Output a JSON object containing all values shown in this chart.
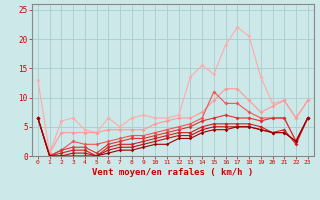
{
  "xlabel": "Vent moyen/en rafales ( km/h )",
  "bg_color": "#cce8e8",
  "grid_color": "#aacccc",
  "axis_color": "#cc0000",
  "spine_color": "#888888",
  "xlim": [
    -0.5,
    23.5
  ],
  "ylim": [
    0,
    26
  ],
  "yticks": [
    0,
    5,
    10,
    15,
    20,
    25
  ],
  "xticks": [
    0,
    1,
    2,
    3,
    4,
    5,
    6,
    7,
    8,
    9,
    10,
    11,
    12,
    13,
    14,
    15,
    16,
    17,
    18,
    19,
    20,
    21,
    22,
    23
  ],
  "series": [
    {
      "x": [
        0,
        1,
        2,
        3,
        4,
        5,
        6,
        7,
        8,
        9,
        10,
        11,
        12,
        13,
        14,
        15,
        16,
        17,
        18,
        19,
        20,
        21,
        22,
        23
      ],
      "y": [
        13.0,
        0.5,
        6.0,
        6.5,
        4.5,
        4.0,
        6.5,
        5.0,
        6.5,
        7.0,
        6.5,
        6.5,
        7.0,
        13.5,
        15.5,
        14.0,
        19.0,
        22.0,
        20.5,
        13.5,
        9.0,
        9.5,
        6.5,
        9.5
      ],
      "color": "#ffaaaa",
      "lw": 0.8,
      "marker": "D",
      "ms": 2.0
    },
    {
      "x": [
        0,
        1,
        2,
        3,
        4,
        5,
        6,
        7,
        8,
        9,
        10,
        11,
        12,
        13,
        14,
        15,
        16,
        17,
        18,
        19,
        20,
        21,
        22,
        23
      ],
      "y": [
        6.5,
        0.5,
        4.0,
        4.0,
        4.0,
        4.0,
        4.5,
        4.5,
        4.5,
        4.5,
        5.5,
        6.0,
        6.5,
        6.5,
        7.5,
        9.5,
        11.5,
        11.5,
        9.5,
        7.5,
        8.5,
        9.5,
        6.5,
        9.5
      ],
      "color": "#ff9999",
      "lw": 0.8,
      "marker": "D",
      "ms": 2.0
    },
    {
      "x": [
        0,
        1,
        2,
        3,
        4,
        5,
        6,
        7,
        8,
        9,
        10,
        11,
        12,
        13,
        14,
        15,
        16,
        17,
        18,
        19,
        20,
        21,
        22,
        23
      ],
      "y": [
        6.5,
        0.0,
        1.0,
        2.5,
        2.0,
        2.0,
        2.5,
        3.0,
        3.5,
        3.5,
        4.0,
        4.5,
        5.0,
        5.5,
        6.5,
        11.0,
        9.0,
        9.0,
        7.5,
        6.5,
        6.5,
        6.5,
        2.5,
        6.5
      ],
      "color": "#ee5555",
      "lw": 0.8,
      "marker": "D",
      "ms": 2.0
    },
    {
      "x": [
        0,
        1,
        2,
        3,
        4,
        5,
        6,
        7,
        8,
        9,
        10,
        11,
        12,
        13,
        14,
        15,
        16,
        17,
        18,
        19,
        20,
        21,
        22,
        23
      ],
      "y": [
        6.5,
        0.0,
        1.0,
        1.5,
        1.5,
        0.5,
        2.0,
        2.5,
        3.0,
        3.0,
        3.5,
        4.0,
        4.5,
        5.0,
        6.0,
        6.5,
        7.0,
        6.5,
        6.5,
        6.0,
        6.5,
        6.5,
        2.5,
        6.5
      ],
      "color": "#dd3333",
      "lw": 0.8,
      "marker": "D",
      "ms": 2.0
    },
    {
      "x": [
        0,
        1,
        2,
        3,
        4,
        5,
        6,
        7,
        8,
        9,
        10,
        11,
        12,
        13,
        14,
        15,
        16,
        17,
        18,
        19,
        20,
        21,
        22,
        23
      ],
      "y": [
        6.5,
        0.0,
        0.5,
        1.0,
        1.0,
        0.0,
        1.5,
        2.0,
        2.0,
        2.5,
        3.0,
        3.5,
        4.0,
        4.0,
        5.0,
        5.5,
        5.5,
        5.5,
        5.5,
        5.0,
        4.0,
        4.5,
        2.0,
        6.5
      ],
      "color": "#cc2222",
      "lw": 0.8,
      "marker": "D",
      "ms": 2.0
    },
    {
      "x": [
        0,
        1,
        2,
        3,
        4,
        5,
        6,
        7,
        8,
        9,
        10,
        11,
        12,
        13,
        14,
        15,
        16,
        17,
        18,
        19,
        20,
        21,
        22,
        23
      ],
      "y": [
        6.5,
        0.0,
        0.0,
        0.5,
        0.5,
        0.0,
        1.0,
        1.5,
        1.5,
        2.0,
        2.5,
        3.0,
        3.5,
        3.5,
        4.5,
        5.0,
        5.0,
        5.0,
        5.0,
        4.5,
        4.0,
        4.0,
        2.5,
        6.5
      ],
      "color": "#bb1111",
      "lw": 0.8,
      "marker": "D",
      "ms": 1.8
    },
    {
      "x": [
        0,
        1,
        2,
        3,
        4,
        5,
        6,
        7,
        8,
        9,
        10,
        11,
        12,
        13,
        14,
        15,
        16,
        17,
        18,
        19,
        20,
        21,
        22,
        23
      ],
      "y": [
        6.5,
        0.0,
        0.0,
        0.0,
        0.0,
        0.0,
        0.5,
        1.0,
        1.0,
        1.5,
        2.0,
        2.0,
        3.0,
        3.0,
        4.0,
        4.5,
        4.5,
        5.0,
        5.0,
        4.5,
        4.0,
        4.0,
        2.5,
        6.5
      ],
      "color": "#990000",
      "lw": 0.8,
      "marker": "D",
      "ms": 1.8
    }
  ]
}
